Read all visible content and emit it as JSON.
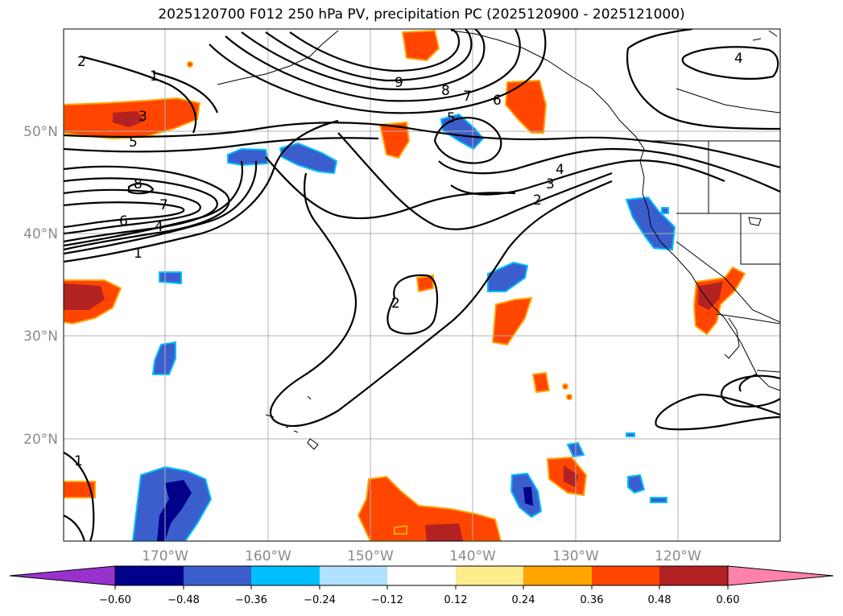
{
  "title": "2025120700 F012 250 hPa PV, precipitation PC (2025120900 - 2025121000)",
  "latitude_labels": [
    "50°N",
    "40°N",
    "30°N",
    "20°N"
  ],
  "longitude_labels": [
    "170°W",
    "160°W",
    "150°W",
    "140°W",
    "130°W",
    "120°W"
  ],
  "pv_contour_labels": [
    "2",
    "1",
    "3",
    "5",
    "9",
    "8",
    "7",
    "6",
    "5",
    "4",
    "3",
    "2",
    "8",
    "7",
    "6",
    "4",
    "1",
    "2",
    "1",
    "4"
  ],
  "colorbar": {
    "tick_labels": [
      "−0.60",
      "−0.48",
      "−0.36",
      "−0.24",
      "−0.12",
      "0.12",
      "0.24",
      "0.36",
      "0.48",
      "0.60"
    ],
    "colors": [
      "#9932cc",
      "#00008b",
      "#3a5fcd",
      "#00bfff",
      "#b0e2ff",
      "#ffffff",
      "#ffec8b",
      "#ffa500",
      "#ff4500",
      "#b22222",
      "#ff82ab"
    ]
  },
  "colors": {
    "neg_strong": "#00008b",
    "neg_mid": "#3a5fcd",
    "neg_light": "#00bfff",
    "pos_light": "#ffa500",
    "pos_mid": "#ff4500",
    "pos_strong": "#b22222",
    "contour": "#000000",
    "grid": "#b0b0b0"
  }
}
